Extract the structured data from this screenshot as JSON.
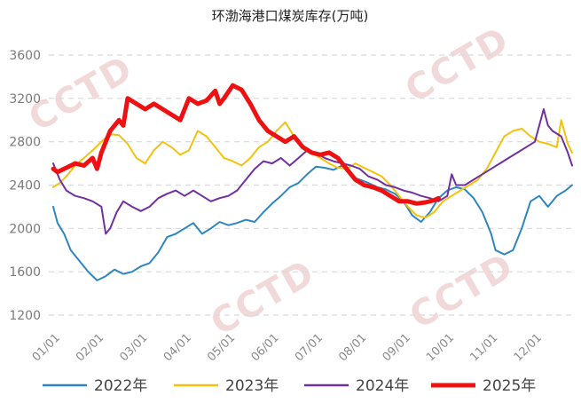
{
  "chart_data": {
    "type": "line",
    "title": "环渤海港口煤炭库存(万吨)",
    "xlabel": "",
    "ylabel": "",
    "x_tick_labels": [
      "01/01",
      "02/01",
      "03/01",
      "04/01",
      "05/01",
      "06/01",
      "07/01",
      "08/01",
      "09/01",
      "10/01",
      "11/01",
      "12/01"
    ],
    "x_range_month": [
      1,
      12.85
    ],
    "ylim": [
      1200,
      3600
    ],
    "y_ticks": [
      1200,
      1600,
      2000,
      2400,
      2800,
      3200,
      3600
    ],
    "grid": true,
    "legend_position": "bottom",
    "series": [
      {
        "name": "2022年",
        "color": "#2e86c1",
        "x": [
          1.0,
          1.1,
          1.25,
          1.4,
          1.6,
          1.8,
          2.0,
          2.2,
          2.4,
          2.6,
          2.8,
          3.0,
          3.2,
          3.4,
          3.6,
          3.8,
          4.0,
          4.2,
          4.4,
          4.6,
          4.8,
          5.0,
          5.2,
          5.4,
          5.6,
          5.8,
          6.0,
          6.2,
          6.4,
          6.6,
          6.8,
          7.0,
          7.2,
          7.4,
          7.6,
          7.8,
          8.0,
          8.2,
          8.4,
          8.6,
          8.8,
          9.0,
          9.2,
          9.4,
          9.6,
          9.8,
          10.0,
          10.2,
          10.4,
          10.6,
          10.8,
          11.0,
          11.1,
          11.3,
          11.5,
          11.7,
          11.9,
          12.1,
          12.3,
          12.5,
          12.7,
          12.85
        ],
        "values": [
          2200,
          2050,
          1950,
          1800,
          1700,
          1600,
          1520,
          1560,
          1620,
          1580,
          1600,
          1650,
          1680,
          1780,
          1920,
          1950,
          2000,
          2050,
          1950,
          2000,
          2060,
          2030,
          2050,
          2080,
          2060,
          2150,
          2230,
          2300,
          2380,
          2420,
          2500,
          2570,
          2560,
          2540,
          2580,
          2480,
          2450,
          2420,
          2380,
          2360,
          2320,
          2250,
          2120,
          2060,
          2150,
          2280,
          2350,
          2380,
          2360,
          2280,
          2150,
          1950,
          1800,
          1760,
          1800,
          2000,
          2250,
          2300,
          2200,
          2300,
          2350,
          2400
        ]
      },
      {
        "name": "2023年",
        "color": "#f4c20d",
        "x": [
          1.0,
          1.15,
          1.3,
          1.5,
          1.7,
          1.9,
          2.1,
          2.3,
          2.5,
          2.7,
          2.9,
          3.1,
          3.3,
          3.5,
          3.7,
          3.9,
          4.1,
          4.3,
          4.5,
          4.7,
          4.9,
          5.1,
          5.3,
          5.5,
          5.7,
          5.9,
          6.1,
          6.3,
          6.5,
          6.7,
          6.9,
          7.1,
          7.3,
          7.5,
          7.7,
          7.9,
          8.1,
          8.3,
          8.5,
          8.7,
          8.9,
          9.1,
          9.3,
          9.5,
          9.7,
          9.9,
          10.1,
          10.3,
          10.5,
          10.7,
          10.9,
          11.1,
          11.3,
          11.5,
          11.7,
          11.9,
          12.1,
          12.3,
          12.5,
          12.6,
          12.75,
          12.85
        ],
        "values": [
          2380,
          2420,
          2480,
          2580,
          2650,
          2720,
          2800,
          2870,
          2860,
          2780,
          2650,
          2600,
          2720,
          2800,
          2750,
          2680,
          2720,
          2900,
          2850,
          2750,
          2650,
          2620,
          2580,
          2650,
          2750,
          2800,
          2900,
          2980,
          2850,
          2750,
          2700,
          2650,
          2600,
          2560,
          2550,
          2600,
          2560,
          2520,
          2480,
          2400,
          2300,
          2200,
          2120,
          2100,
          2150,
          2250,
          2300,
          2350,
          2400,
          2450,
          2550,
          2700,
          2850,
          2900,
          2920,
          2850,
          2800,
          2780,
          2750,
          3000,
          2780,
          2700
        ]
      },
      {
        "name": "2024年",
        "color": "#7030a0",
        "x": [
          1.0,
          1.15,
          1.3,
          1.5,
          1.7,
          1.9,
          2.1,
          2.2,
          2.3,
          2.45,
          2.6,
          2.8,
          3.0,
          3.2,
          3.4,
          3.6,
          3.8,
          4.0,
          4.2,
          4.4,
          4.6,
          4.8,
          5.0,
          5.2,
          5.4,
          5.6,
          5.8,
          6.0,
          6.2,
          6.4,
          6.6,
          6.8,
          7.0,
          7.2,
          7.4,
          7.6,
          7.8,
          8.0,
          8.2,
          8.4,
          8.6,
          8.8,
          9.0,
          9.2,
          9.4,
          9.6,
          9.8,
          10.0,
          10.1,
          10.2,
          10.4,
          10.6,
          10.8,
          11.0,
          11.2,
          11.4,
          11.6,
          11.8,
          12.0,
          12.2,
          12.3,
          12.4,
          12.6,
          12.75,
          12.85
        ],
        "values": [
          2600,
          2450,
          2350,
          2300,
          2280,
          2250,
          2200,
          1950,
          2000,
          2150,
          2250,
          2200,
          2160,
          2200,
          2280,
          2320,
          2350,
          2300,
          2350,
          2300,
          2250,
          2280,
          2300,
          2350,
          2450,
          2550,
          2620,
          2600,
          2650,
          2580,
          2650,
          2720,
          2700,
          2650,
          2620,
          2600,
          2580,
          2550,
          2480,
          2450,
          2400,
          2380,
          2350,
          2330,
          2300,
          2280,
          2250,
          2300,
          2500,
          2400,
          2400,
          2450,
          2500,
          2550,
          2600,
          2650,
          2700,
          2750,
          2800,
          3100,
          2950,
          2900,
          2850,
          2700,
          2580
        ]
      },
      {
        "name": "2025年",
        "color": "#ee1111",
        "x": [
          1.0,
          1.1,
          1.3,
          1.5,
          1.7,
          1.9,
          2.0,
          2.1,
          2.3,
          2.5,
          2.6,
          2.7,
          2.9,
          3.1,
          3.3,
          3.5,
          3.7,
          3.9,
          4.1,
          4.3,
          4.5,
          4.7,
          4.8,
          4.9,
          5.1,
          5.3,
          5.5,
          5.7,
          5.9,
          6.1,
          6.3,
          6.5,
          6.7,
          6.9,
          7.1,
          7.3,
          7.5,
          7.7,
          7.9,
          8.1,
          8.3,
          8.5,
          8.7,
          8.9,
          9.1,
          9.3,
          9.5,
          9.7,
          9.8
        ],
        "values": [
          2550,
          2520,
          2560,
          2600,
          2580,
          2650,
          2550,
          2700,
          2900,
          3000,
          2950,
          3200,
          3150,
          3100,
          3150,
          3100,
          3050,
          3000,
          3200,
          3150,
          3180,
          3270,
          3150,
          3200,
          3320,
          3280,
          3150,
          3000,
          2900,
          2850,
          2800,
          2850,
          2750,
          2700,
          2680,
          2700,
          2650,
          2550,
          2450,
          2400,
          2380,
          2350,
          2300,
          2250,
          2250,
          2230,
          2240,
          2260,
          2280
        ]
      }
    ]
  }
}
